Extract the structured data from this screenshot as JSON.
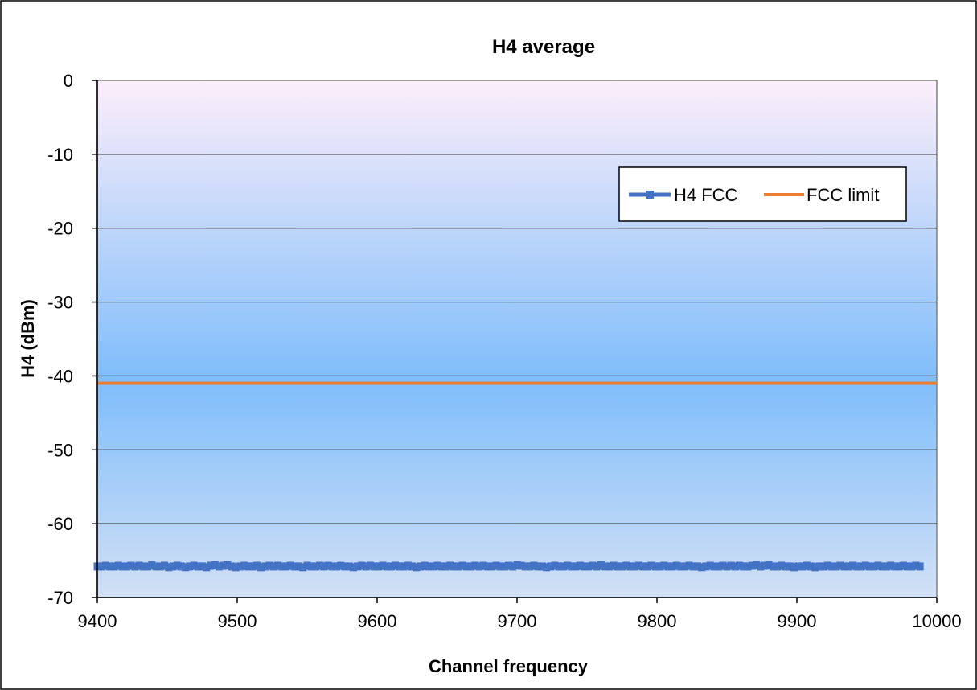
{
  "chart_data": {
    "type": "line",
    "title": "H4 average",
    "xlabel": "Channel frequency",
    "ylabel": "H4 (dBm)",
    "xlim": [
      9400,
      10000
    ],
    "ylim": [
      -70,
      0
    ],
    "x_ticks": [
      9400,
      9500,
      9600,
      9700,
      9800,
      9900,
      10000
    ],
    "y_ticks": [
      0,
      -10,
      -20,
      -30,
      -40,
      -50,
      -60,
      -70
    ],
    "grid": "horizontal",
    "legend_position": "top-right",
    "series": [
      {
        "name": "H4 FCC",
        "color": "#4472C4",
        "marker": "square",
        "x_start": 9400,
        "x_step": 3,
        "values": [
          -65.8,
          -65.8,
          -65.7,
          -65.8,
          -65.8,
          -65.7,
          -65.8,
          -65.8,
          -65.7,
          -65.8,
          -65.7,
          -65.8,
          -65.8,
          -65.6,
          -65.8,
          -65.8,
          -65.7,
          -65.9,
          -65.8,
          -65.7,
          -65.8,
          -65.9,
          -65.8,
          -65.7,
          -65.8,
          -65.8,
          -65.9,
          -65.7,
          -65.6,
          -65.8,
          -65.7,
          -65.6,
          -65.8,
          -65.9,
          -65.8,
          -65.7,
          -65.8,
          -65.8,
          -65.7,
          -65.9,
          -65.8,
          -65.7,
          -65.8,
          -65.7,
          -65.8,
          -65.8,
          -65.7,
          -65.8,
          -65.8,
          -65.9,
          -65.7,
          -65.8,
          -65.8,
          -65.7,
          -65.8,
          -65.7,
          -65.8,
          -65.8,
          -65.7,
          -65.8,
          -65.8,
          -65.9,
          -65.8,
          -65.7,
          -65.8,
          -65.7,
          -65.8,
          -65.8,
          -65.7,
          -65.8,
          -65.8,
          -65.7,
          -65.8,
          -65.8,
          -65.7,
          -65.8,
          -65.9,
          -65.8,
          -65.7,
          -65.8,
          -65.8,
          -65.7,
          -65.8,
          -65.8,
          -65.7,
          -65.8,
          -65.8,
          -65.7,
          -65.8,
          -65.8,
          -65.7,
          -65.8,
          -65.7,
          -65.8,
          -65.8,
          -65.7,
          -65.8,
          -65.8,
          -65.7,
          -65.8,
          -65.6,
          -65.7,
          -65.8,
          -65.8,
          -65.7,
          -65.8,
          -65.8,
          -65.9,
          -65.8,
          -65.7,
          -65.8,
          -65.8,
          -65.7,
          -65.8,
          -65.8,
          -65.7,
          -65.8,
          -65.8,
          -65.7,
          -65.8,
          -65.6,
          -65.8,
          -65.8,
          -65.7,
          -65.8,
          -65.8,
          -65.7,
          -65.8,
          -65.8,
          -65.7,
          -65.8,
          -65.8,
          -65.7,
          -65.8,
          -65.8,
          -65.7,
          -65.8,
          -65.8,
          -65.7,
          -65.8,
          -65.8,
          -65.7,
          -65.8,
          -65.8,
          -65.9,
          -65.8,
          -65.7,
          -65.8,
          -65.8,
          -65.7,
          -65.8,
          -65.7,
          -65.8,
          -65.7,
          -65.8,
          -65.8,
          -65.7,
          -65.6,
          -65.8,
          -65.7,
          -65.6,
          -65.8,
          -65.8,
          -65.7,
          -65.8,
          -65.8,
          -65.9,
          -65.8,
          -65.8,
          -65.7,
          -65.8,
          -65.9,
          -65.8,
          -65.8,
          -65.7,
          -65.8,
          -65.8,
          -65.7,
          -65.8,
          -65.8,
          -65.7,
          -65.8,
          -65.8,
          -65.7,
          -65.8,
          -65.8,
          -65.7,
          -65.8,
          -65.8,
          -65.7,
          -65.8,
          -65.8,
          -65.7,
          -65.8,
          -65.8,
          -65.7,
          -65.8
        ]
      },
      {
        "name": "FCC limit",
        "color": "#ED7D31",
        "marker": "none",
        "x": [
          9400,
          10000
        ],
        "values": [
          -41,
          -41
        ]
      }
    ]
  }
}
